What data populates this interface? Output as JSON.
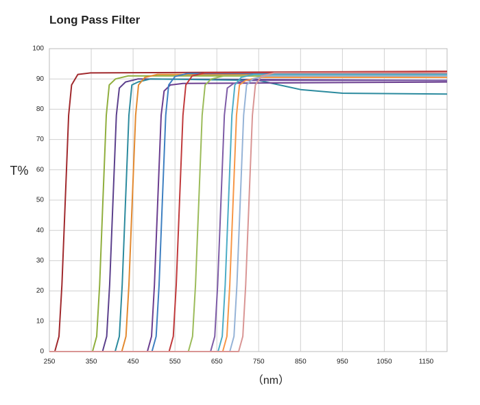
{
  "chart_data": {
    "type": "line",
    "title": "Long Pass Filter",
    "y_label": "T%",
    "x_label": "（nm）",
    "xlim": [
      250,
      1200
    ],
    "ylim": [
      0,
      100
    ],
    "xticks": [
      250,
      350,
      450,
      550,
      650,
      750,
      850,
      950,
      1050,
      1150
    ],
    "yticks": [
      0,
      10,
      20,
      30,
      40,
      50,
      60,
      70,
      80,
      90,
      100
    ],
    "grid": true,
    "series": [
      {
        "color": "#a0282c",
        "x": [
          250,
          263,
          273,
          280,
          288,
          296,
          303,
          318,
          348,
          1200
        ],
        "values": [
          0,
          0,
          5,
          22,
          50,
          78,
          88,
          91.5,
          92,
          92.5
        ]
      },
      {
        "color": "#8fae3c",
        "x": [
          250,
          353,
          363,
          370,
          378,
          386,
          393,
          408,
          438,
          1200
        ],
        "values": [
          0,
          0,
          5,
          22,
          50,
          78,
          88,
          90,
          91,
          91
        ]
      },
      {
        "color": "#5b3f8c",
        "x": [
          250,
          377,
          387,
          394,
          402,
          410,
          417,
          432,
          462,
          1200
        ],
        "values": [
          0,
          0,
          5,
          22,
          50,
          78,
          87,
          89,
          90,
          89.5
        ]
      },
      {
        "color": "#2b8a9e",
        "x": [
          250,
          407,
          417,
          424,
          432,
          440,
          447,
          462,
          492,
          750,
          850,
          950,
          1200
        ],
        "values": [
          0,
          0,
          5,
          22,
          50,
          78,
          88,
          89,
          90,
          89.5,
          86.5,
          85.3,
          85
        ]
      },
      {
        "color": "#e3892f",
        "x": [
          250,
          423,
          433,
          440,
          448,
          456,
          463,
          478,
          508,
          1200
        ],
        "values": [
          0,
          0,
          5,
          22,
          50,
          78,
          88,
          90.5,
          91.5,
          91.5
        ]
      },
      {
        "color": "#6a3d8f",
        "x": [
          250,
          484,
          494,
          501,
          509,
          517,
          524,
          539,
          569,
          1200
        ],
        "values": [
          0,
          0,
          5,
          22,
          50,
          78,
          86,
          88,
          88.5,
          89
        ]
      },
      {
        "color": "#3d7fc1",
        "x": [
          250,
          495,
          505,
          512,
          520,
          528,
          535,
          550,
          580,
          1200
        ],
        "values": [
          0,
          0,
          5,
          22,
          50,
          78,
          88,
          90.8,
          91.8,
          91.8
        ]
      },
      {
        "color": "#c0393b",
        "x": [
          250,
          536,
          546,
          553,
          561,
          569,
          576,
          591,
          621,
          1200
        ],
        "values": [
          0,
          0,
          5,
          22,
          50,
          78,
          88,
          91,
          92,
          92.5
        ]
      },
      {
        "color": "#9bbb59",
        "x": [
          250,
          582,
          592,
          599,
          607,
          615,
          622,
          637,
          667,
          1200
        ],
        "values": [
          0,
          0,
          5,
          22,
          50,
          78,
          88,
          90,
          91,
          90.5
        ]
      },
      {
        "color": "#7d5ba6",
        "x": [
          250,
          635,
          645,
          652,
          660,
          668,
          675,
          690,
          720,
          1200
        ],
        "values": [
          0,
          0,
          5,
          22,
          50,
          78,
          87,
          88.5,
          89.5,
          89.5
        ]
      },
      {
        "color": "#4bacc6",
        "x": [
          250,
          653,
          663,
          670,
          678,
          686,
          693,
          708,
          738,
          1200
        ],
        "values": [
          0,
          0,
          5,
          22,
          50,
          78,
          88,
          90.5,
          91.5,
          91.5
        ]
      },
      {
        "color": "#f79646",
        "x": [
          250,
          664,
          674,
          681,
          689,
          697,
          704,
          719,
          749,
          1200
        ],
        "values": [
          0,
          0,
          5,
          22,
          50,
          78,
          88,
          89.5,
          90.5,
          90.5
        ]
      },
      {
        "color": "#95b3d7",
        "x": [
          250,
          681,
          691,
          698,
          706,
          714,
          721,
          736,
          766,
          1200
        ],
        "values": [
          0,
          0,
          5,
          22,
          50,
          78,
          88,
          90,
          91,
          91
        ]
      },
      {
        "color": "#d99594",
        "x": [
          250,
          702,
          712,
          719,
          727,
          735,
          742,
          757,
          787,
          1200
        ],
        "values": [
          0,
          0,
          5,
          22,
          50,
          78,
          88,
          91,
          92,
          92
        ]
      }
    ]
  }
}
